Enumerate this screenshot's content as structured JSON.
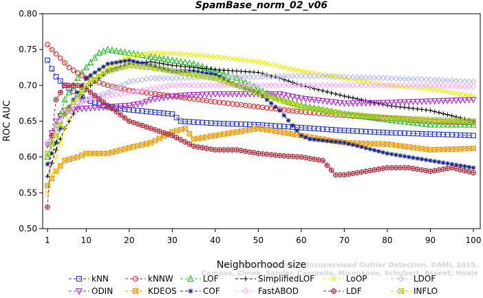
{
  "chart_data": {
    "type": "line",
    "title": "SpamBase_norm_02_v06",
    "xlabel": "Neighborhood size",
    "ylabel": "ROC AUC",
    "xlim": [
      1,
      100
    ],
    "ylim": [
      0.5,
      0.8
    ],
    "x_ticks": [
      "1",
      "10",
      "20",
      "30",
      "40",
      "50",
      "60",
      "70",
      "80",
      "90",
      "100"
    ],
    "y_ticks": [
      "0.50",
      "0.55",
      "0.60",
      "0.65",
      "0.70",
      "0.75",
      "0.80"
    ],
    "grid": false,
    "legend_position": "bottom",
    "watermark": "Campos, Zimek, Sander, Campello, Micenková, Schubert, Assent, Houle",
    "watermark_line1": "On the Evaluation of Unsupervised Outlier Detection. DAMI, 2015.",
    "watermark_line2": "Campos, Zimek, Sander, Campello, Micenkova, Schubert, Assent, Houle",
    "series": [
      {
        "name": "kNN",
        "color": "#2233cc",
        "marker": "square",
        "points": [
          [
            1,
            0.735
          ],
          [
            2,
            0.723
          ],
          [
            3,
            0.712
          ],
          [
            5,
            0.7
          ],
          [
            8,
            0.688
          ],
          [
            10,
            0.68
          ],
          [
            15,
            0.67
          ],
          [
            20,
            0.666
          ],
          [
            30,
            0.66
          ],
          [
            32,
            0.65
          ],
          [
            40,
            0.647
          ],
          [
            50,
            0.645
          ],
          [
            60,
            0.641
          ],
          [
            70,
            0.637
          ],
          [
            80,
            0.634
          ],
          [
            90,
            0.632
          ],
          [
            100,
            0.63
          ]
        ]
      },
      {
        "name": "kNNW",
        "color": "#dd2222",
        "marker": "circle",
        "points": [
          [
            1,
            0.757
          ],
          [
            2,
            0.75
          ],
          [
            4,
            0.738
          ],
          [
            6,
            0.725
          ],
          [
            10,
            0.71
          ],
          [
            15,
            0.7
          ],
          [
            20,
            0.693
          ],
          [
            30,
            0.685
          ],
          [
            40,
            0.677
          ],
          [
            50,
            0.67
          ],
          [
            60,
            0.663
          ],
          [
            70,
            0.658
          ],
          [
            80,
            0.654
          ],
          [
            90,
            0.65
          ],
          [
            100,
            0.648
          ]
        ]
      },
      {
        "name": "LOF",
        "color": "#22bb22",
        "marker": "triangle-up",
        "points": [
          [
            1,
            0.6
          ],
          [
            3,
            0.64
          ],
          [
            5,
            0.68
          ],
          [
            8,
            0.71
          ],
          [
            10,
            0.725
          ],
          [
            13,
            0.745
          ],
          [
            15,
            0.75
          ],
          [
            20,
            0.745
          ],
          [
            25,
            0.74
          ],
          [
            30,
            0.735
          ],
          [
            35,
            0.73
          ],
          [
            40,
            0.72
          ],
          [
            45,
            0.71
          ],
          [
            50,
            0.695
          ],
          [
            55,
            0.68
          ],
          [
            60,
            0.672
          ],
          [
            70,
            0.66
          ],
          [
            80,
            0.652
          ],
          [
            90,
            0.645
          ],
          [
            100,
            0.645
          ]
        ]
      },
      {
        "name": "SimplifiedLOF",
        "color": "#000000",
        "marker": "plus",
        "points": [
          [
            1,
            0.573
          ],
          [
            3,
            0.61
          ],
          [
            5,
            0.64
          ],
          [
            8,
            0.67
          ],
          [
            10,
            0.695
          ],
          [
            15,
            0.72
          ],
          [
            20,
            0.73
          ],
          [
            25,
            0.733
          ],
          [
            30,
            0.728
          ],
          [
            35,
            0.725
          ],
          [
            40,
            0.722
          ],
          [
            45,
            0.72
          ],
          [
            50,
            0.718
          ],
          [
            55,
            0.71
          ],
          [
            60,
            0.7
          ],
          [
            70,
            0.685
          ],
          [
            80,
            0.672
          ],
          [
            90,
            0.665
          ],
          [
            100,
            0.65
          ]
        ]
      },
      {
        "name": "LoOP",
        "color": "#eeee00",
        "marker": "x",
        "points": [
          [
            1,
            0.55
          ],
          [
            3,
            0.6
          ],
          [
            5,
            0.64
          ],
          [
            8,
            0.68
          ],
          [
            10,
            0.7
          ],
          [
            15,
            0.725
          ],
          [
            20,
            0.74
          ],
          [
            25,
            0.745
          ],
          [
            30,
            0.745
          ],
          [
            40,
            0.74
          ],
          [
            50,
            0.733
          ],
          [
            60,
            0.72
          ],
          [
            70,
            0.71
          ],
          [
            80,
            0.7
          ],
          [
            90,
            0.695
          ],
          [
            100,
            0.685
          ]
        ]
      },
      {
        "name": "LDOF",
        "color": "#bbbbee",
        "marker": "diamond",
        "points": [
          [
            1,
            0.62
          ],
          [
            3,
            0.64
          ],
          [
            5,
            0.66
          ],
          [
            8,
            0.67
          ],
          [
            10,
            0.68
          ],
          [
            15,
            0.69
          ],
          [
            20,
            0.705
          ],
          [
            25,
            0.71
          ],
          [
            30,
            0.71
          ],
          [
            40,
            0.712
          ],
          [
            50,
            0.712
          ],
          [
            60,
            0.713
          ],
          [
            70,
            0.712
          ],
          [
            80,
            0.71
          ],
          [
            90,
            0.708
          ],
          [
            100,
            0.705
          ]
        ]
      },
      {
        "name": "ODIN",
        "color": "#aa22cc",
        "marker": "triangle-down",
        "points": [
          [
            1,
            0.617
          ],
          [
            3,
            0.65
          ],
          [
            5,
            0.665
          ],
          [
            10,
            0.668
          ],
          [
            15,
            0.67
          ],
          [
            20,
            0.672
          ],
          [
            23,
            0.675
          ],
          [
            25,
            0.68
          ],
          [
            30,
            0.685
          ],
          [
            35,
            0.687
          ],
          [
            40,
            0.688
          ],
          [
            50,
            0.688
          ],
          [
            55,
            0.688
          ],
          [
            60,
            0.682
          ],
          [
            70,
            0.675
          ],
          [
            80,
            0.676
          ],
          [
            90,
            0.678
          ],
          [
            100,
            0.68
          ]
        ]
      },
      {
        "name": "KDEOS",
        "color": "#ee9900",
        "marker": "square-x",
        "points": [
          [
            1,
            0.56
          ],
          [
            3,
            0.58
          ],
          [
            5,
            0.595
          ],
          [
            8,
            0.6
          ],
          [
            10,
            0.605
          ],
          [
            15,
            0.605
          ],
          [
            20,
            0.613
          ],
          [
            25,
            0.62
          ],
          [
            30,
            0.635
          ],
          [
            33,
            0.64
          ],
          [
            35,
            0.625
          ],
          [
            40,
            0.63
          ],
          [
            45,
            0.635
          ],
          [
            50,
            0.64
          ],
          [
            55,
            0.635
          ],
          [
            60,
            0.63
          ],
          [
            65,
            0.625
          ],
          [
            70,
            0.62
          ],
          [
            80,
            0.618
          ],
          [
            90,
            0.61
          ],
          [
            100,
            0.612
          ]
        ]
      },
      {
        "name": "COF",
        "color": "#112288",
        "marker": "star",
        "points": [
          [
            1,
            0.59
          ],
          [
            3,
            0.62
          ],
          [
            5,
            0.66
          ],
          [
            8,
            0.69
          ],
          [
            10,
            0.71
          ],
          [
            15,
            0.73
          ],
          [
            20,
            0.735
          ],
          [
            25,
            0.728
          ],
          [
            30,
            0.72
          ],
          [
            35,
            0.72
          ],
          [
            40,
            0.715
          ],
          [
            45,
            0.7
          ],
          [
            50,
            0.69
          ],
          [
            55,
            0.665
          ],
          [
            60,
            0.63
          ],
          [
            62,
            0.625
          ],
          [
            70,
            0.62
          ],
          [
            80,
            0.605
          ],
          [
            90,
            0.595
          ],
          [
            100,
            0.585
          ]
        ]
      },
      {
        "name": "FastABOD",
        "color": "#ffaaff",
        "marker": "diamond",
        "points": [
          [
            1,
            0.62
          ],
          [
            3,
            0.64
          ],
          [
            5,
            0.66
          ],
          [
            8,
            0.675
          ],
          [
            10,
            0.68
          ],
          [
            15,
            0.685
          ],
          [
            20,
            0.69
          ],
          [
            25,
            0.695
          ],
          [
            30,
            0.7
          ],
          [
            40,
            0.7
          ],
          [
            50,
            0.7
          ],
          [
            60,
            0.7
          ],
          [
            70,
            0.7
          ],
          [
            80,
            0.7
          ],
          [
            90,
            0.7
          ],
          [
            100,
            0.698
          ]
        ]
      },
      {
        "name": "LDF",
        "color": "#aa2233",
        "marker": "circle-plus",
        "points": [
          [
            1,
            0.53
          ],
          [
            2,
            0.63
          ],
          [
            3,
            0.68
          ],
          [
            5,
            0.7
          ],
          [
            8,
            0.7
          ],
          [
            10,
            0.695
          ],
          [
            15,
            0.672
          ],
          [
            20,
            0.65
          ],
          [
            25,
            0.64
          ],
          [
            30,
            0.63
          ],
          [
            35,
            0.615
          ],
          [
            40,
            0.61
          ],
          [
            45,
            0.61
          ],
          [
            50,
            0.605
          ],
          [
            55,
            0.602
          ],
          [
            60,
            0.6
          ],
          [
            65,
            0.595
          ],
          [
            68,
            0.575
          ],
          [
            70,
            0.575
          ],
          [
            75,
            0.58
          ],
          [
            80,
            0.585
          ],
          [
            85,
            0.585
          ],
          [
            90,
            0.58
          ],
          [
            95,
            0.585
          ],
          [
            100,
            0.578
          ]
        ]
      },
      {
        "name": "INFLO",
        "color": "#aacc22",
        "marker": "square-x",
        "points": [
          [
            1,
            0.605
          ],
          [
            3,
            0.63
          ],
          [
            5,
            0.66
          ],
          [
            8,
            0.685
          ],
          [
            10,
            0.7
          ],
          [
            15,
            0.72
          ],
          [
            20,
            0.728
          ],
          [
            25,
            0.725
          ],
          [
            30,
            0.72
          ],
          [
            35,
            0.715
          ],
          [
            40,
            0.71
          ],
          [
            45,
            0.7
          ],
          [
            50,
            0.69
          ],
          [
            55,
            0.68
          ],
          [
            60,
            0.67
          ],
          [
            70,
            0.66
          ],
          [
            80,
            0.655
          ],
          [
            90,
            0.652
          ],
          [
            100,
            0.65
          ]
        ]
      }
    ]
  }
}
